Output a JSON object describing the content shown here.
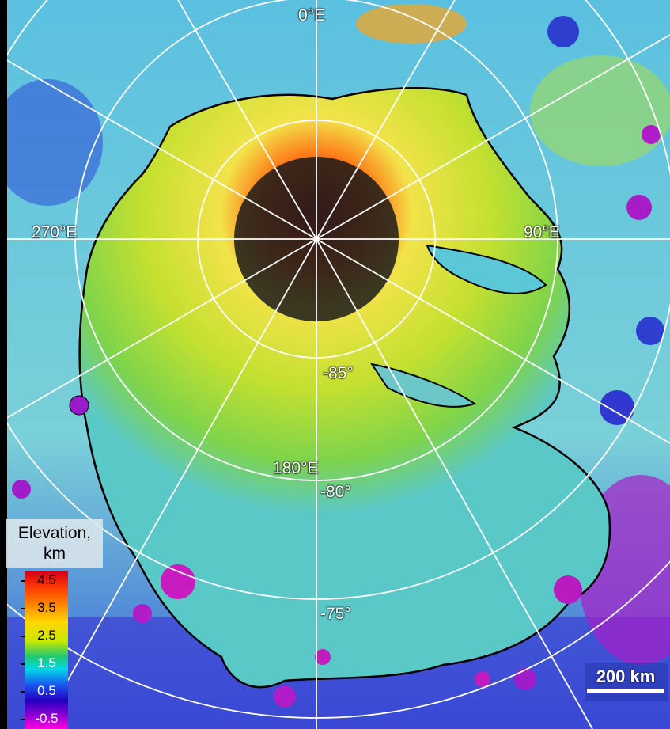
{
  "map": {
    "longitude_labels": [
      "0°E",
      "90°E",
      "180°E",
      "270°E"
    ],
    "latitude_labels": [
      "-85°",
      "-80°",
      "-75°"
    ],
    "colors": {
      "background_low": "#5bc8d8",
      "terrain_mid": "#7fd44a",
      "terrain_high": "#f2e34a",
      "peak": "#c81818",
      "deep_low": "#2e2bd0",
      "very_low": "#b01cc8",
      "polar_hole": "#1a1a1a",
      "grid": "#ffffff",
      "outline": "#000000"
    }
  },
  "legend": {
    "title_line1": "Elevation,",
    "title_line2": "km",
    "ticks": [
      "4.5",
      "3.5",
      "2.5",
      "1.5",
      "0.5",
      "-0.5"
    ]
  },
  "scalebar": {
    "label": "200 km"
  }
}
